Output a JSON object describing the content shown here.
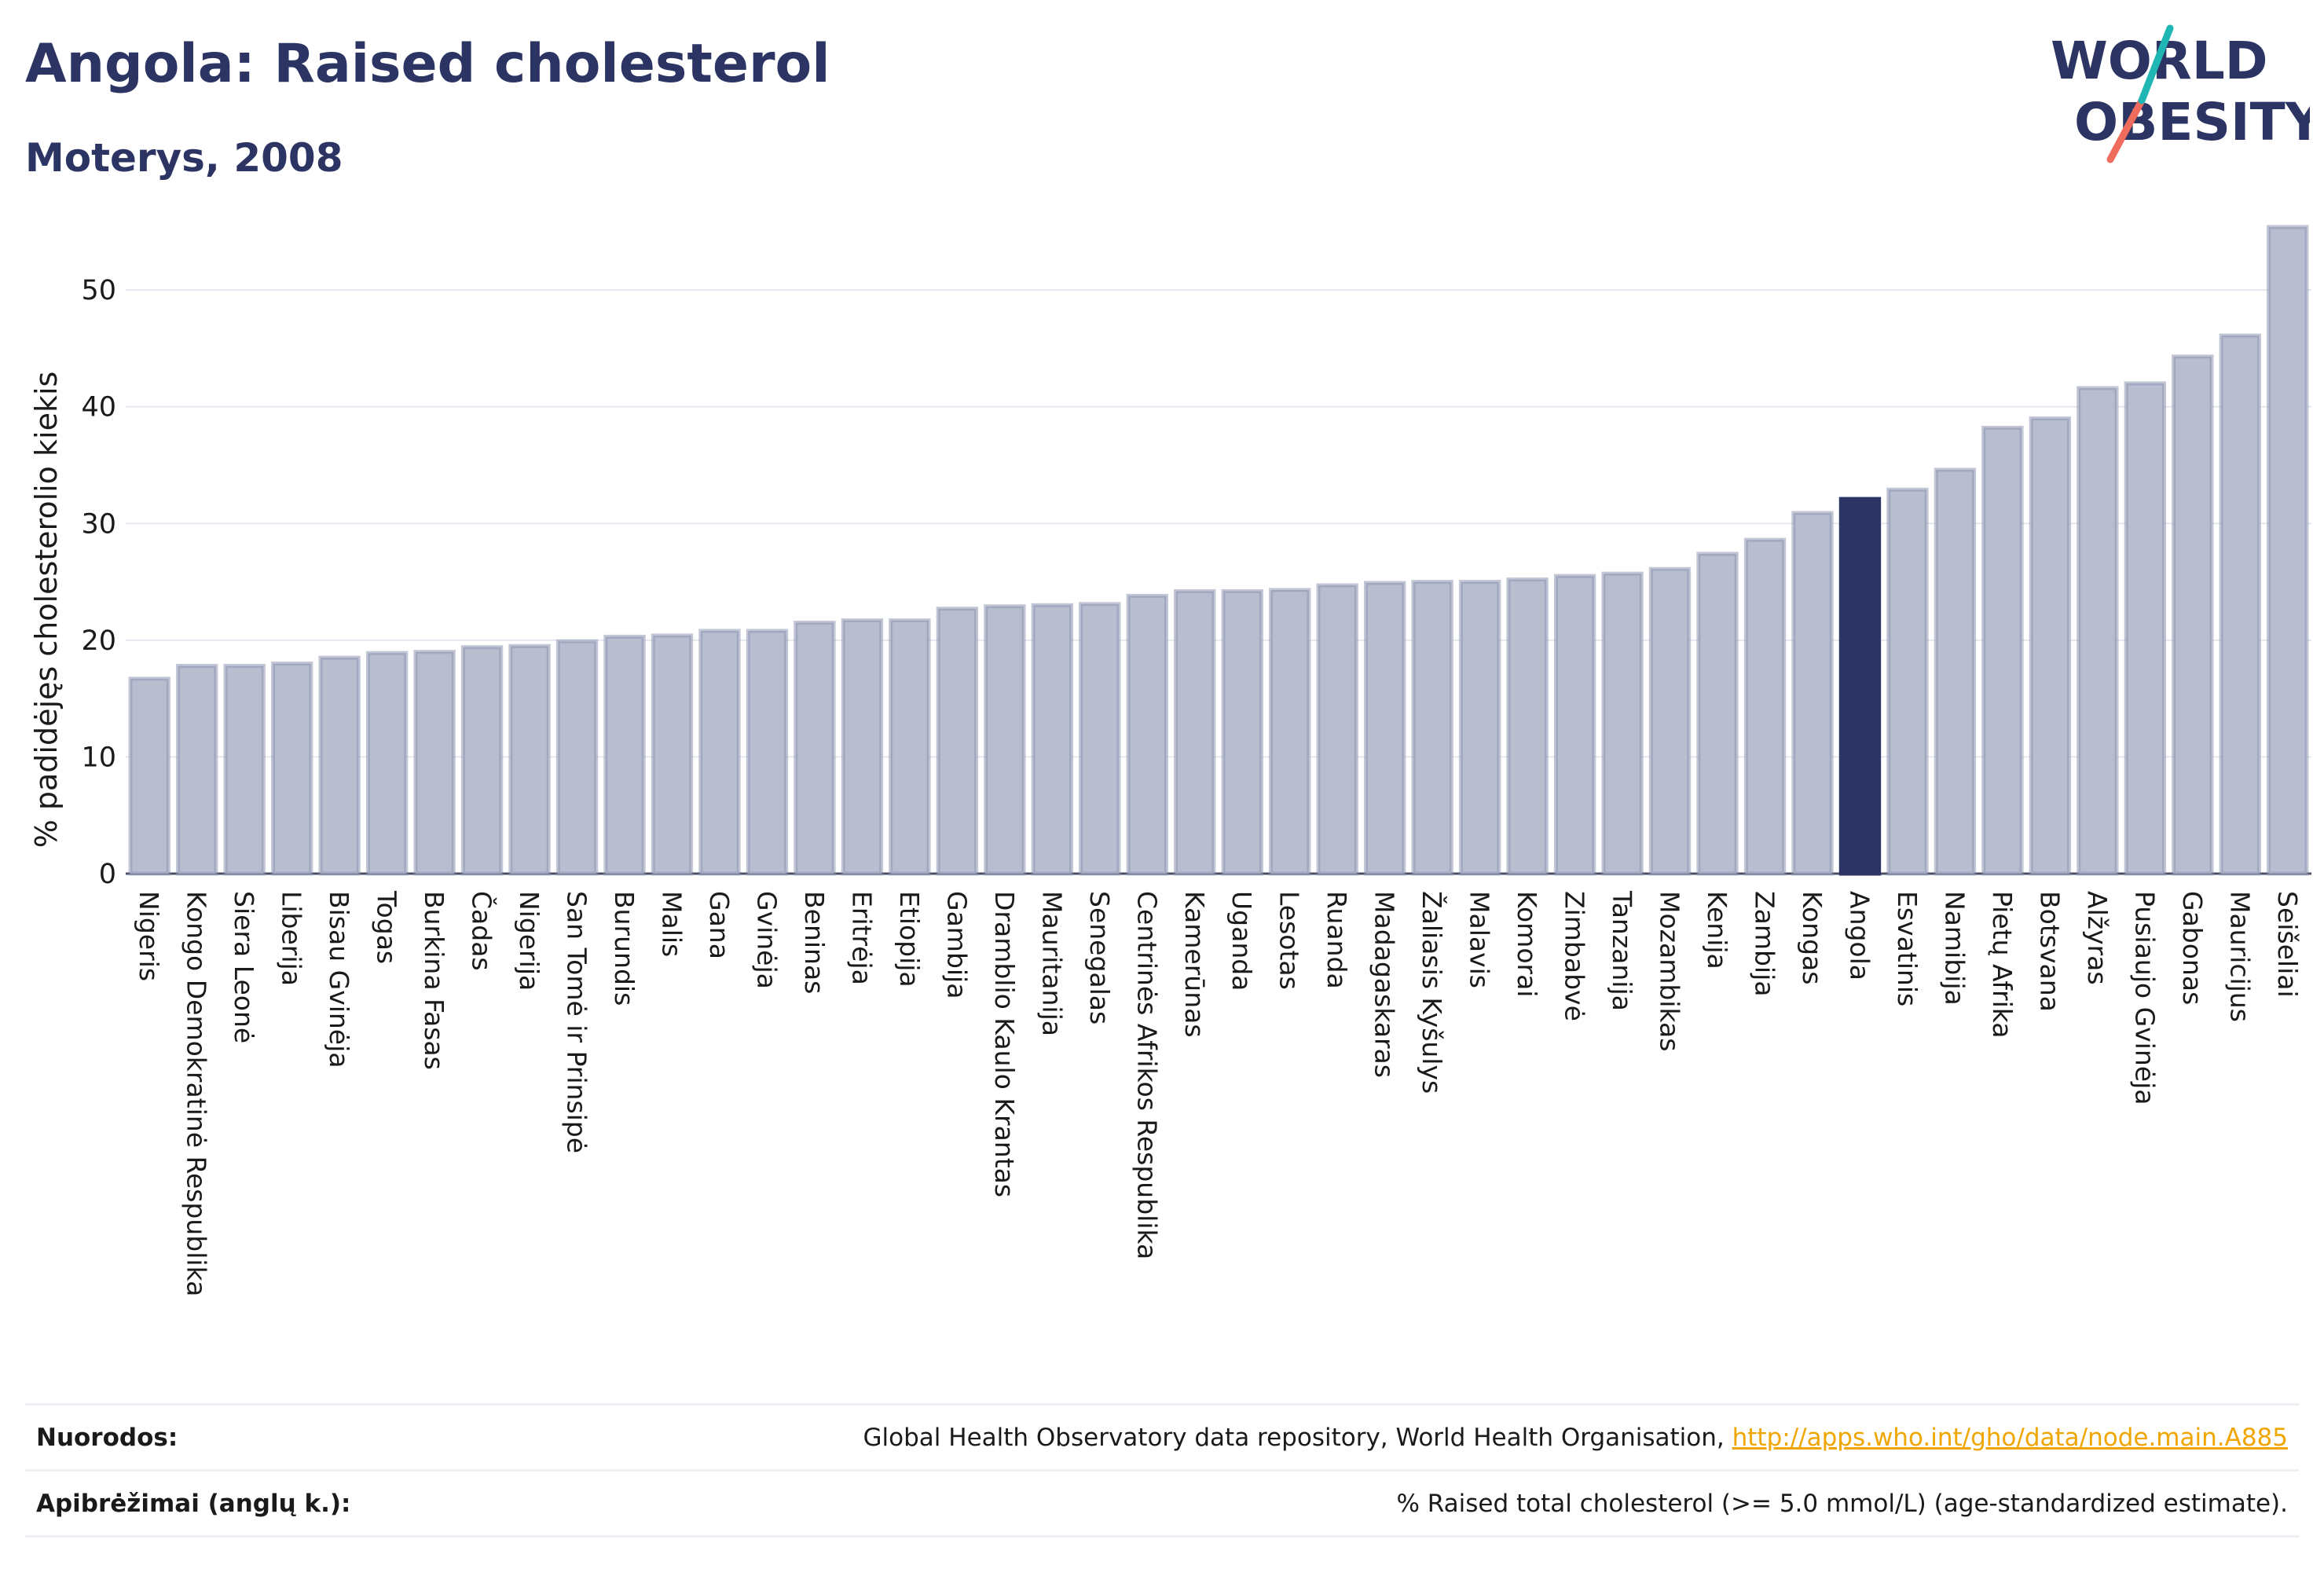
{
  "header": {
    "title": "Angola: Raised cholesterol",
    "subtitle": "Moterys, 2008"
  },
  "logo": {
    "line1": "WORLD",
    "line2": "OBESITY"
  },
  "colors": {
    "bar": "#b8bdd0",
    "bar_stroke": "#9097b3",
    "highlight": "#2b3462",
    "accent_teal": "#1fb6b3",
    "accent_red": "#ef6b5b",
    "link": "#f0a500"
  },
  "chart_data": {
    "type": "bar",
    "ylabel": "% padidėjęs cholesterolio kiekis",
    "ylim": [
      0,
      56
    ],
    "yticks": [
      0,
      10,
      20,
      30,
      40,
      50
    ],
    "grid": true,
    "highlight": "Angola",
    "categories": [
      "Nigeris",
      "Kongo Demokratinė Respublika",
      "Siera Leonė",
      "Liberija",
      "Bisau Gvinėja",
      "Togas",
      "Burkina Fasas",
      "Čadas",
      "Nigerija",
      "San Tomė ir Prinsipė",
      "Burundis",
      "Malis",
      "Gana",
      "Gvinėja",
      "Beninas",
      "Eritrėja",
      "Etiopija",
      "Gambija",
      "Dramblio Kaulo Krantas",
      "Mauritanija",
      "Senegalas",
      "Centrinės Afrikos Respublika",
      "Kamerūnas",
      "Uganda",
      "Lesotas",
      "Ruanda",
      "Madagaskaras",
      "Žaliasis Kyšulys",
      "Malavis",
      "Komorai",
      "Zimbabvė",
      "Tanzanija",
      "Mozambikas",
      "Kenija",
      "Zambija",
      "Kongas",
      "Angola",
      "Esvatinis",
      "Namibija",
      "Pietų Afrika",
      "Botsvana",
      "Alžyras",
      "Pusiaujo Gvinėja",
      "Gabonas",
      "Mauricijus",
      "Seišeliai"
    ],
    "values": [
      16.7,
      17.8,
      17.8,
      18.0,
      18.5,
      18.9,
      19.0,
      19.4,
      19.5,
      19.9,
      20.3,
      20.4,
      20.8,
      20.8,
      21.5,
      21.7,
      21.7,
      22.7,
      22.9,
      23.0,
      23.1,
      23.8,
      24.2,
      24.2,
      24.3,
      24.7,
      24.9,
      25.0,
      25.0,
      25.2,
      25.5,
      25.7,
      26.1,
      27.4,
      28.6,
      30.9,
      32.1,
      32.9,
      34.6,
      38.2,
      39.0,
      41.6,
      42.0,
      44.3,
      46.1,
      55.4
    ]
  },
  "footer": {
    "sources_label": "Nuorodos:",
    "sources_text": "Global Health Observatory data repository, World Health Organisation, ",
    "sources_link": "http://apps.who.int/gho/data/node.main.A885",
    "definitions_label": "Apibrėžimai (anglų k.):",
    "definitions_text": "% Raised total cholesterol (>= 5.0 mmol/L) (age-standardized estimate)."
  }
}
